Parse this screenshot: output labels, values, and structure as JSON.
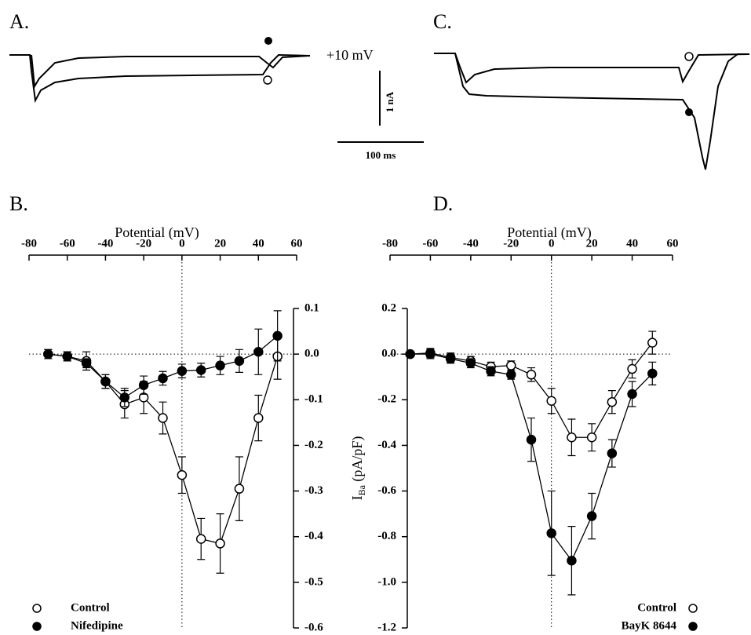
{
  "annotations": {
    "panel_a": "A.",
    "panel_b": "B.",
    "panel_c": "C.",
    "panel_d": "D.",
    "voltage": "+10 mV",
    "current_scale": "1 nA",
    "time_scale": "100 ms"
  },
  "chart_data": [
    {
      "type": "line",
      "xlabel": "Potential (mV)",
      "yaxis_side": "right",
      "legend": "lower left",
      "x": [
        -70,
        -60,
        -50,
        -40,
        -30,
        -20,
        -10,
        0,
        10,
        20,
        30,
        40,
        50
      ],
      "xlim": [
        -80,
        60
      ],
      "xticks": [
        -80,
        -60,
        -40,
        -20,
        0,
        20,
        40,
        60
      ],
      "ylim": [
        -0.6,
        0.1
      ],
      "yticks": [
        0.1,
        {
          "value": 0,
          "label": "0.0"
        },
        -0.1,
        -0.2,
        -0.3,
        -0.4,
        -0.5,
        -0.6
      ],
      "series": [
        {
          "name": "Control",
          "marker": "open",
          "color": "#000000",
          "values": [
            0.0,
            -0.005,
            -0.015,
            -0.06,
            -0.11,
            -0.095,
            -0.14,
            -0.265,
            -0.405,
            -0.415,
            -0.295,
            -0.14,
            -0.005
          ],
          "errors": [
            0.01,
            0.01,
            0.02,
            0.015,
            0.03,
            0.035,
            0.035,
            0.04,
            0.045,
            0.065,
            0.07,
            0.05,
            0.05
          ]
        },
        {
          "name": "Nifedipine",
          "marker": "filled",
          "color": "#000000",
          "values": [
            0.0,
            -0.005,
            -0.02,
            -0.06,
            -0.095,
            -0.068,
            -0.053,
            -0.037,
            -0.035,
            -0.025,
            -0.015,
            0.005,
            0.04
          ],
          "errors": [
            0.01,
            0.01,
            0.01,
            0.015,
            0.02,
            0.02,
            0.015,
            0.015,
            0.015,
            0.02,
            0.025,
            0.05,
            0.055
          ]
        }
      ]
    },
    {
      "type": "line",
      "xlabel": "Potential (mV)",
      "ylabel": [
        "I",
        "Ba",
        " (pA/pF)"
      ],
      "yaxis_side": "left",
      "legend": "lower right",
      "x": [
        -70,
        -60,
        -50,
        -40,
        -30,
        -20,
        -10,
        0,
        10,
        20,
        30,
        40,
        50
      ],
      "xlim": [
        -80,
        60
      ],
      "xticks": [
        -80,
        -60,
        -40,
        -20,
        0,
        20,
        40,
        60
      ],
      "ylim": [
        -1.2,
        0.2
      ],
      "yticks": [
        0.2,
        {
          "value": 0,
          "label": "0.0"
        },
        -0.2,
        -0.4,
        -0.6,
        -0.8,
        {
          "value": -1,
          "label": "-1.0"
        },
        -1.2
      ],
      "series": [
        {
          "name": "Control",
          "marker": "open",
          "color": "#000000",
          "values": [
            0.0,
            0.005,
            -0.015,
            -0.03,
            -0.055,
            -0.05,
            -0.09,
            -0.205,
            -0.365,
            -0.365,
            -0.21,
            -0.065,
            0.05
          ],
          "errors": [
            0.01,
            0.02,
            0.02,
            0.02,
            0.02,
            0.02,
            0.03,
            0.055,
            0.08,
            0.06,
            0.05,
            0.04,
            0.05
          ]
        },
        {
          "name": "BayK 8644",
          "marker": "filled",
          "color": "#000000",
          "values": [
            0.0,
            0.0,
            -0.02,
            -0.04,
            -0.075,
            -0.09,
            -0.375,
            -0.785,
            -0.905,
            -0.71,
            -0.435,
            -0.175,
            -0.085
          ],
          "errors": [
            0.01,
            0.02,
            0.02,
            0.02,
            0.02,
            0.02,
            0.095,
            0.185,
            0.15,
            0.1,
            0.06,
            0.055,
            0.05
          ]
        }
      ]
    }
  ]
}
